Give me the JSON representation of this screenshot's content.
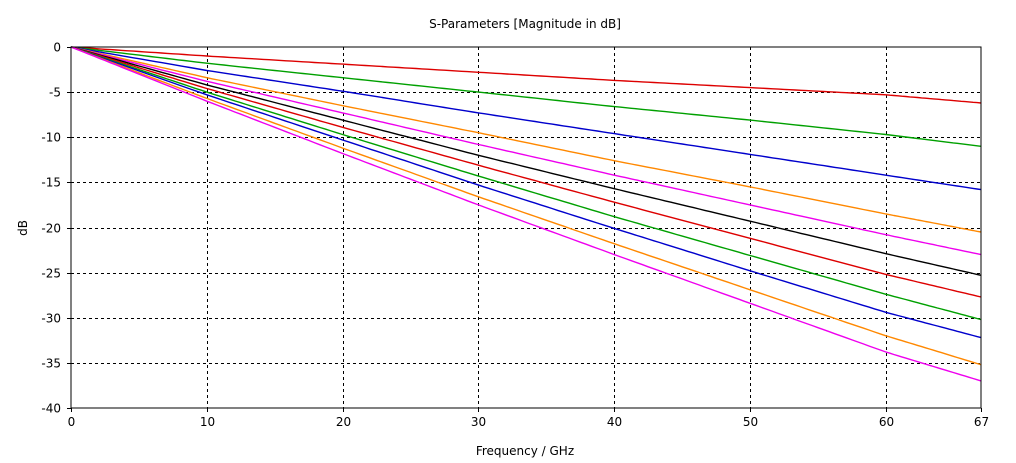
{
  "chart_data": {
    "type": "line",
    "title": "S-Parameters [Magnitude in dB]",
    "xlabel": "Frequency / GHz",
    "ylabel": "dB",
    "xlim": [
      0,
      67
    ],
    "ylim": [
      -40,
      0
    ],
    "xticks": [
      0,
      10,
      20,
      30,
      40,
      50,
      60,
      67
    ],
    "yticks": [
      0,
      -5,
      -10,
      -15,
      -20,
      -25,
      -30,
      -35,
      -40
    ],
    "grid": true,
    "legend": "none",
    "series": [
      {
        "color": "#dd0000",
        "x": [
          0,
          10,
          20,
          30,
          40,
          50,
          60,
          67
        ],
        "values": [
          0,
          -1.0,
          -1.9,
          -2.8,
          -3.7,
          -4.5,
          -5.3,
          -6.2
        ]
      },
      {
        "color": "#00a000",
        "x": [
          0,
          10,
          20,
          30,
          40,
          50,
          60,
          67
        ],
        "values": [
          0,
          -1.8,
          -3.4,
          -5.0,
          -6.6,
          -8.1,
          -9.7,
          -11.0
        ]
      },
      {
        "color": "#0000cc",
        "x": [
          0,
          10,
          20,
          30,
          40,
          50,
          60,
          67
        ],
        "values": [
          0,
          -2.6,
          -4.9,
          -7.3,
          -9.6,
          -11.9,
          -14.2,
          -15.8
        ]
      },
      {
        "color": "#ff8800",
        "x": [
          0,
          10,
          20,
          30,
          40,
          50,
          60,
          67
        ],
        "values": [
          0,
          -3.4,
          -6.5,
          -9.5,
          -12.6,
          -15.5,
          -18.5,
          -20.5
        ]
      },
      {
        "color": "#ee00ee",
        "x": [
          0,
          10,
          20,
          30,
          40,
          50,
          60,
          67
        ],
        "values": [
          0,
          -3.8,
          -7.3,
          -10.8,
          -14.2,
          -17.5,
          -20.8,
          -23.0
        ]
      },
      {
        "color": "#000000",
        "x": [
          0,
          10,
          20,
          30,
          40,
          50,
          60,
          67
        ],
        "values": [
          0,
          -4.2,
          -8.1,
          -12.0,
          -15.7,
          -19.3,
          -22.9,
          -25.3
        ]
      },
      {
        "color": "#dd0000",
        "x": [
          0,
          10,
          20,
          30,
          40,
          50,
          60,
          67
        ],
        "values": [
          0,
          -4.6,
          -8.9,
          -13.1,
          -17.2,
          -21.2,
          -25.2,
          -27.7
        ]
      },
      {
        "color": "#00a000",
        "x": [
          0,
          10,
          20,
          30,
          40,
          50,
          60,
          67
        ],
        "values": [
          0,
          -5.0,
          -9.7,
          -14.3,
          -18.8,
          -23.1,
          -27.4,
          -30.2
        ]
      },
      {
        "color": "#0000cc",
        "x": [
          0,
          10,
          20,
          30,
          40,
          50,
          60,
          67
        ],
        "values": [
          0,
          -5.3,
          -10.3,
          -15.3,
          -20.1,
          -24.8,
          -29.4,
          -32.2
        ]
      },
      {
        "color": "#ff8800",
        "x": [
          0,
          10,
          20,
          30,
          40,
          50,
          60,
          67
        ],
        "values": [
          0,
          -5.7,
          -11.2,
          -16.6,
          -21.8,
          -26.9,
          -32.0,
          -35.2
        ]
      },
      {
        "color": "#ee00ee",
        "x": [
          0,
          10,
          20,
          30,
          40,
          50,
          60,
          67
        ],
        "values": [
          0,
          -6.0,
          -11.8,
          -17.5,
          -23.0,
          -28.4,
          -33.8,
          -37.0
        ]
      }
    ]
  }
}
